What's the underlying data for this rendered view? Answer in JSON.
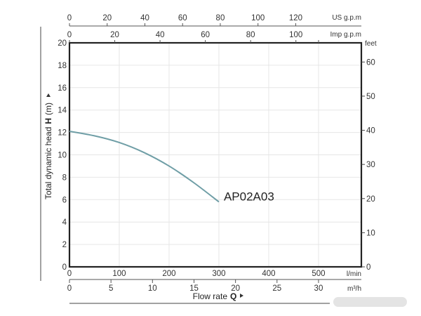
{
  "chart_data": {
    "type": "line",
    "xlabel": "Flow rate",
    "xlabel_symbol": "Q",
    "ylabel": "Total dynamic head",
    "ylabel_symbol": "H",
    "ylabel_unit": "(m)",
    "x_unit": "l/min",
    "y_unit": "m",
    "xlim": [
      0,
      586
    ],
    "ylim": [
      0,
      20
    ],
    "grid": true,
    "x_ticks": [
      0,
      100,
      200,
      300,
      400,
      500
    ],
    "y_ticks": [
      0,
      2,
      4,
      6,
      8,
      10,
      12,
      14,
      16,
      18,
      20
    ],
    "secondary_axes": {
      "m3h": {
        "unit": "m³/h",
        "ticks": [
          0,
          5,
          10,
          15,
          20,
          25,
          30
        ]
      },
      "us_gpm": {
        "unit": "US g.p.m",
        "ticks": [
          0,
          20,
          40,
          60,
          80,
          100,
          120
        ]
      },
      "imp_gpm": {
        "unit": "Imp g.p.m",
        "ticks": [
          0,
          20,
          40,
          60,
          80,
          100
        ]
      },
      "feet": {
        "unit": "feet",
        "ticks": [
          0,
          10,
          20,
          30,
          40,
          50,
          60
        ]
      }
    },
    "series": [
      {
        "name": "AP02A03",
        "color": "#6f9ea6",
        "x": [
          0,
          50,
          100,
          150,
          200,
          250,
          300
        ],
        "y": [
          12.1,
          11.7,
          11.1,
          10.2,
          9.0,
          7.5,
          5.8
        ]
      }
    ]
  }
}
